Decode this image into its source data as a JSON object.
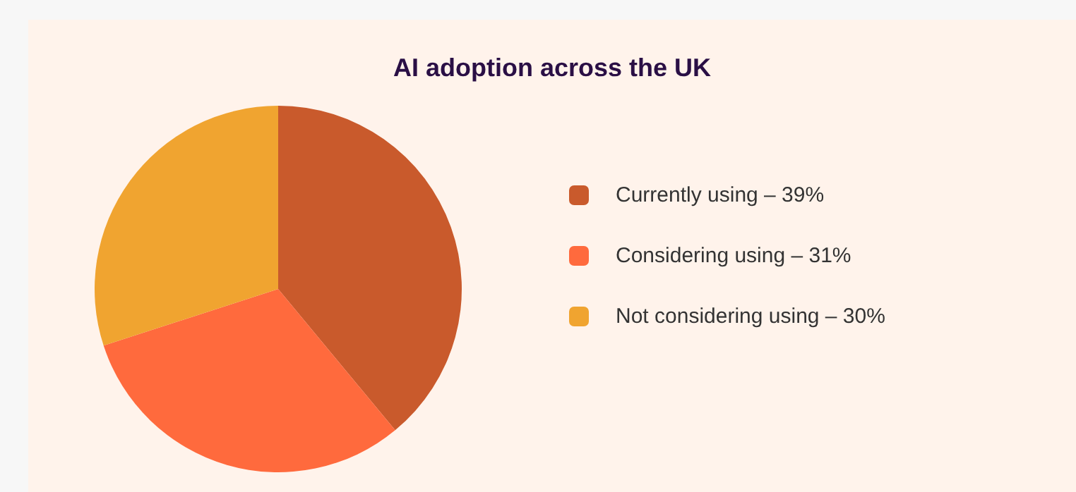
{
  "chart_data": {
    "type": "pie",
    "title": "AI adoption across the UK",
    "categories": [
      "Currently using – 39%",
      "Considering using – 31%",
      "Not considering using – 30%"
    ],
    "values": [
      39,
      31,
      30
    ],
    "colors": [
      "#c95a2c",
      "#ff6a3d",
      "#f0a430"
    ],
    "legend": "right"
  }
}
